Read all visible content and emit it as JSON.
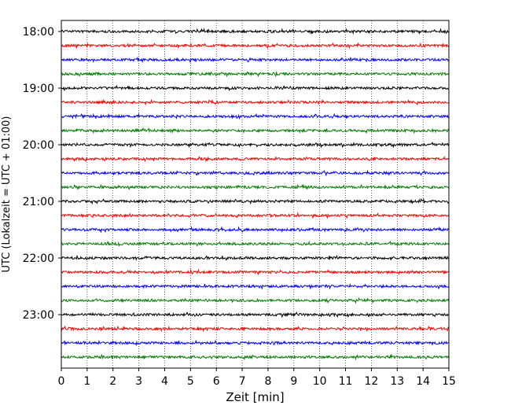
{
  "chart_data": {
    "type": "line",
    "title": "",
    "xlabel": "Zeit  [min]",
    "ylabel": "UTC (Lokalzeit = UTC + 01:00)",
    "xlim": [
      0,
      15
    ],
    "x_ticks": [
      0,
      1,
      2,
      3,
      4,
      5,
      6,
      7,
      8,
      9,
      10,
      11,
      12,
      13,
      14,
      15
    ],
    "y_ticks": [
      "18:00",
      "19:00",
      "20:00",
      "21:00",
      "22:00",
      "23:00"
    ],
    "grid": "vertical dotted",
    "trace_minutes": 15,
    "traces_per_hour": 4,
    "traces": [
      {
        "start": "18:00",
        "color": "#000000"
      },
      {
        "start": "18:15",
        "color": "#ff0000"
      },
      {
        "start": "18:30",
        "color": "#0000ff"
      },
      {
        "start": "18:45",
        "color": "#008000"
      },
      {
        "start": "19:00",
        "color": "#000000"
      },
      {
        "start": "19:15",
        "color": "#ff0000"
      },
      {
        "start": "19:30",
        "color": "#0000ff"
      },
      {
        "start": "19:45",
        "color": "#008000"
      },
      {
        "start": "20:00",
        "color": "#000000"
      },
      {
        "start": "20:15",
        "color": "#ff0000"
      },
      {
        "start": "20:30",
        "color": "#0000ff"
      },
      {
        "start": "20:45",
        "color": "#008000"
      },
      {
        "start": "21:00",
        "color": "#000000"
      },
      {
        "start": "21:15",
        "color": "#ff0000"
      },
      {
        "start": "21:30",
        "color": "#0000ff"
      },
      {
        "start": "21:45",
        "color": "#008000"
      },
      {
        "start": "22:00",
        "color": "#000000"
      },
      {
        "start": "22:15",
        "color": "#ff0000"
      },
      {
        "start": "22:30",
        "color": "#0000ff"
      },
      {
        "start": "22:45",
        "color": "#008000"
      },
      {
        "start": "23:00",
        "color": "#000000"
      },
      {
        "start": "23:15",
        "color": "#ff0000"
      },
      {
        "start": "23:30",
        "color": "#0000ff"
      },
      {
        "start": "23:45",
        "color": "#008000"
      }
    ]
  }
}
